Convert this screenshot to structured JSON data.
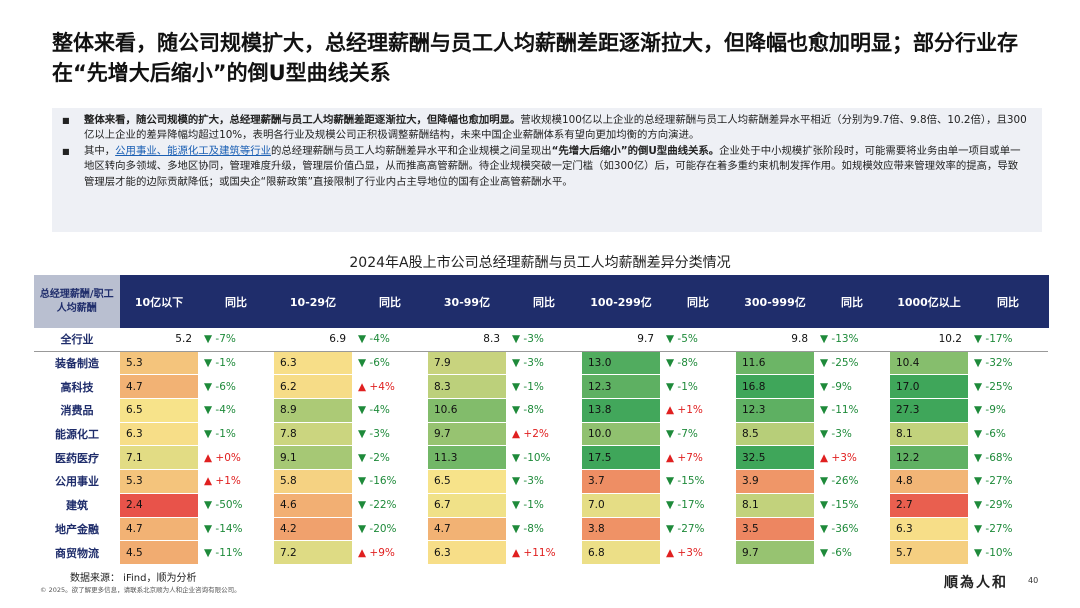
{
  "title": "整体来看，随公司规模扩大，总经理薪酬与员工人均薪酬差距逐渐拉大，但降幅也愈加明显；部分行业存在“先增大后缩小”的倒U型曲线关系",
  "summary": {
    "b1_bold": "整体来看，随公司规模的扩大，总经理薪酬与员工人均薪酬差距逐渐拉大，但降幅也愈加明显。",
    "b1_text": "营收规模100亿以上企业的总经理薪酬与员工人均薪酬差异水平相近（分别为9.7倍、9.8倍、10.2倍），且300亿以上企业的差异降幅均超过10%，表明各行业及规模公司正积极调整薪酬结构，未来中国企业薪酬体系有望向更加均衡的方向演进。",
    "b2_pre": "其中，",
    "b2_link": "公用事业、能源化工及建筑等行业",
    "b2_mid": "的总经理薪酬与员工人均薪酬差异水平和企业规模之间呈现出",
    "b2_bold": "“先增大后缩小”的倒U型曲线关系。",
    "b2_text": "企业处于中小规模扩张阶段时，可能需要将业务由单一项目或单一地区转向多领域、多地区协同，管理难度升级，管理层价值凸显，从而推高高管薪酬。待企业规模突破一定门槛（如300亿）后，可能存在着多重约束机制发挥作用。如规模效应带来管理效率的提高，导致管理层才能的边际贡献降低；或国央企“限薪政策”直接限制了行业内占主导地位的国有企业高管薪酬水平。"
  },
  "table_title": "2024年A股上市公司总经理薪酬与员工人均薪酬差异分类情况",
  "columns": {
    "corner": "总经理薪酬/职工人均薪酬",
    "c1": "10亿以下",
    "c2": "10-29亿",
    "c3": "30-99亿",
    "c4": "100-299亿",
    "c5": "300-999亿",
    "c6": "1000亿以上",
    "yoy": "同比"
  },
  "rows": [
    {
      "label": "全行业",
      "cells": [
        [
          "5.2",
          "▼ -7%"
        ],
        [
          "6.9",
          "▼ -4%"
        ],
        [
          "8.3",
          "▼ -3%"
        ],
        [
          "9.7",
          "▼ -5%"
        ],
        [
          "9.8",
          "▼ -13%"
        ],
        [
          "10.2",
          "▼ -17%"
        ]
      ]
    },
    {
      "label": "装备制造",
      "cells": [
        [
          "5.3",
          "▼ -1%"
        ],
        [
          "6.3",
          "▼ -6%"
        ],
        [
          "7.9",
          "▼ -3%"
        ],
        [
          "13.0",
          "▼ -8%"
        ],
        [
          "11.6",
          "▼ -25%"
        ],
        [
          "10.4",
          "▼ -32%"
        ]
      ]
    },
    {
      "label": "高科技",
      "cells": [
        [
          "4.7",
          "▼ -6%"
        ],
        [
          "6.2",
          "▲ +4%"
        ],
        [
          "8.3",
          "▼ -1%"
        ],
        [
          "12.3",
          "▼ -1%"
        ],
        [
          "16.8",
          "▼ -9%"
        ],
        [
          "17.0",
          "▼ -25%"
        ]
      ]
    },
    {
      "label": "消费品",
      "cells": [
        [
          "6.5",
          "▼ -4%"
        ],
        [
          "8.9",
          "▼ -4%"
        ],
        [
          "10.6",
          "▼ -8%"
        ],
        [
          "13.8",
          "▲ +1%"
        ],
        [
          "12.3",
          "▼ -11%"
        ],
        [
          "27.3",
          "▼ -9%"
        ]
      ]
    },
    {
      "label": "能源化工",
      "cells": [
        [
          "6.3",
          "▼ -1%"
        ],
        [
          "7.8",
          "▼ -3%"
        ],
        [
          "9.7",
          "▲ +2%"
        ],
        [
          "10.0",
          "▼ -7%"
        ],
        [
          "8.5",
          "▼ -3%"
        ],
        [
          "8.1",
          "▼ -6%"
        ]
      ]
    },
    {
      "label": "医药医疗",
      "cells": [
        [
          "7.1",
          "▲ +0%"
        ],
        [
          "9.1",
          "▼ -2%"
        ],
        [
          "11.3",
          "▼ -10%"
        ],
        [
          "17.5",
          "▲ +7%"
        ],
        [
          "32.5",
          "▲ +3%"
        ],
        [
          "12.2",
          "▼ -68%"
        ]
      ]
    },
    {
      "label": "公用事业",
      "cells": [
        [
          "5.3",
          "▲ +1%"
        ],
        [
          "5.8",
          "▼ -16%"
        ],
        [
          "6.5",
          "▼ -3%"
        ],
        [
          "3.7",
          "▼ -15%"
        ],
        [
          "3.9",
          "▼ -26%"
        ],
        [
          "4.8",
          "▼ -27%"
        ]
      ]
    },
    {
      "label": "建筑",
      "cells": [
        [
          "2.4",
          "▼ -50%"
        ],
        [
          "4.6",
          "▼ -22%"
        ],
        [
          "6.7",
          "▼ -1%"
        ],
        [
          "7.0",
          "▼ -17%"
        ],
        [
          "8.1",
          "▼ -15%"
        ],
        [
          "2.7",
          "▼ -29%"
        ]
      ]
    },
    {
      "label": "地产金融",
      "cells": [
        [
          "4.7",
          "▼ -14%"
        ],
        [
          "4.2",
          "▼ -20%"
        ],
        [
          "4.7",
          "▼ -8%"
        ],
        [
          "3.8",
          "▼ -27%"
        ],
        [
          "3.5",
          "▼ -36%"
        ],
        [
          "6.3",
          "▼ -27%"
        ]
      ]
    },
    {
      "label": "商贸物流",
      "cells": [
        [
          "4.5",
          "▼ -11%"
        ],
        [
          "7.2",
          "▲ +9%"
        ],
        [
          "6.3",
          "▲ +11%"
        ],
        [
          "6.8",
          "▲ +3%"
        ],
        [
          "9.7",
          "▼ -6%"
        ],
        [
          "5.7",
          "▼ -10%"
        ]
      ]
    }
  ],
  "colors": {
    "header_bg": "#1f2d6b",
    "heat_low": "#e8534a",
    "heat_mid": "#f7e38a",
    "heat_high": "#3fa65a",
    "down": "#1e8a3a",
    "up": "#e02020"
  },
  "footer": {
    "source": "数据来源： iFind，顺为分析",
    "copyright": "© 2025。欲了解更多信息，请联系北京顺为人和企业咨询有限公司。",
    "logo": "順為人和",
    "page": "40"
  }
}
